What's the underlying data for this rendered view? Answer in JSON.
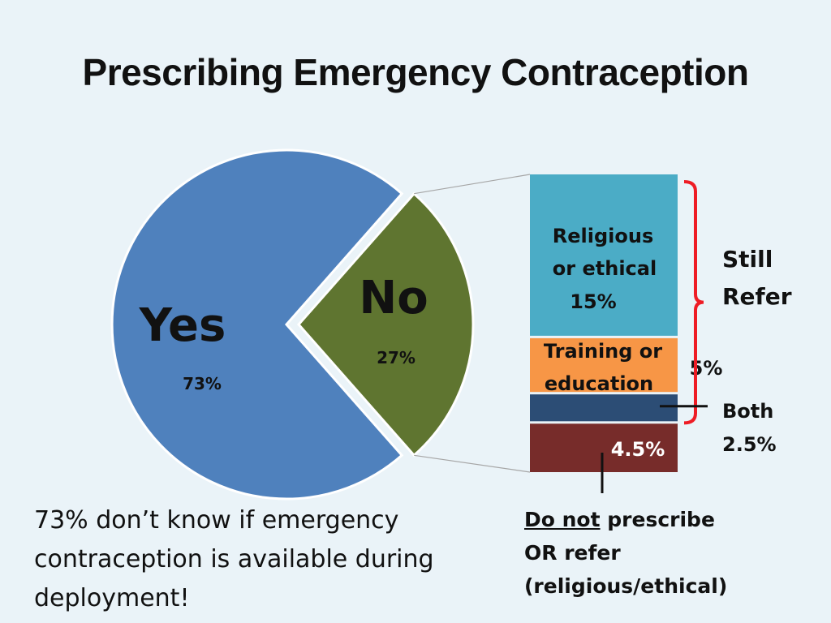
{
  "title": "Prescribing Emergency Contraception",
  "chart_data": [
    {
      "type": "pie",
      "slices": [
        {
          "label": "Yes",
          "value": 73,
          "value_label": "73%",
          "color": "#4f81bd"
        },
        {
          "label": "No",
          "value": 27,
          "value_label": "27%",
          "color": "#5f7530"
        }
      ]
    },
    {
      "type": "bar",
      "stacked": true,
      "segments": [
        {
          "label": "Religious or ethical",
          "label_lines": [
            "Religious",
            "or ethical"
          ],
          "value": 15,
          "value_label": "15%",
          "color": "#4bacc6"
        },
        {
          "label": "Training or education",
          "label_lines": [
            "Training or",
            "education"
          ],
          "value": 5,
          "value_label": "5%",
          "color": "#f79646"
        },
        {
          "label": "Both",
          "value": 2.5,
          "value_label": "2.5%",
          "color": "#2c4d75"
        },
        {
          "label": "Do not prescribe OR refer (religious/ethical)",
          "value": 4.5,
          "value_label": "4.5%",
          "color": "#772c2a"
        }
      ],
      "annotations": {
        "still_refer": [
          "Still",
          "Refer"
        ],
        "both": [
          "Both",
          "2.5%"
        ]
      }
    }
  ],
  "footnote": "73% don’t know if emergency contraception is available during deployment!",
  "legend_note": {
    "emphasis": "Do not",
    "rest_line1": " prescribe",
    "line2": "OR refer",
    "line3": "(religious/ethical)"
  }
}
